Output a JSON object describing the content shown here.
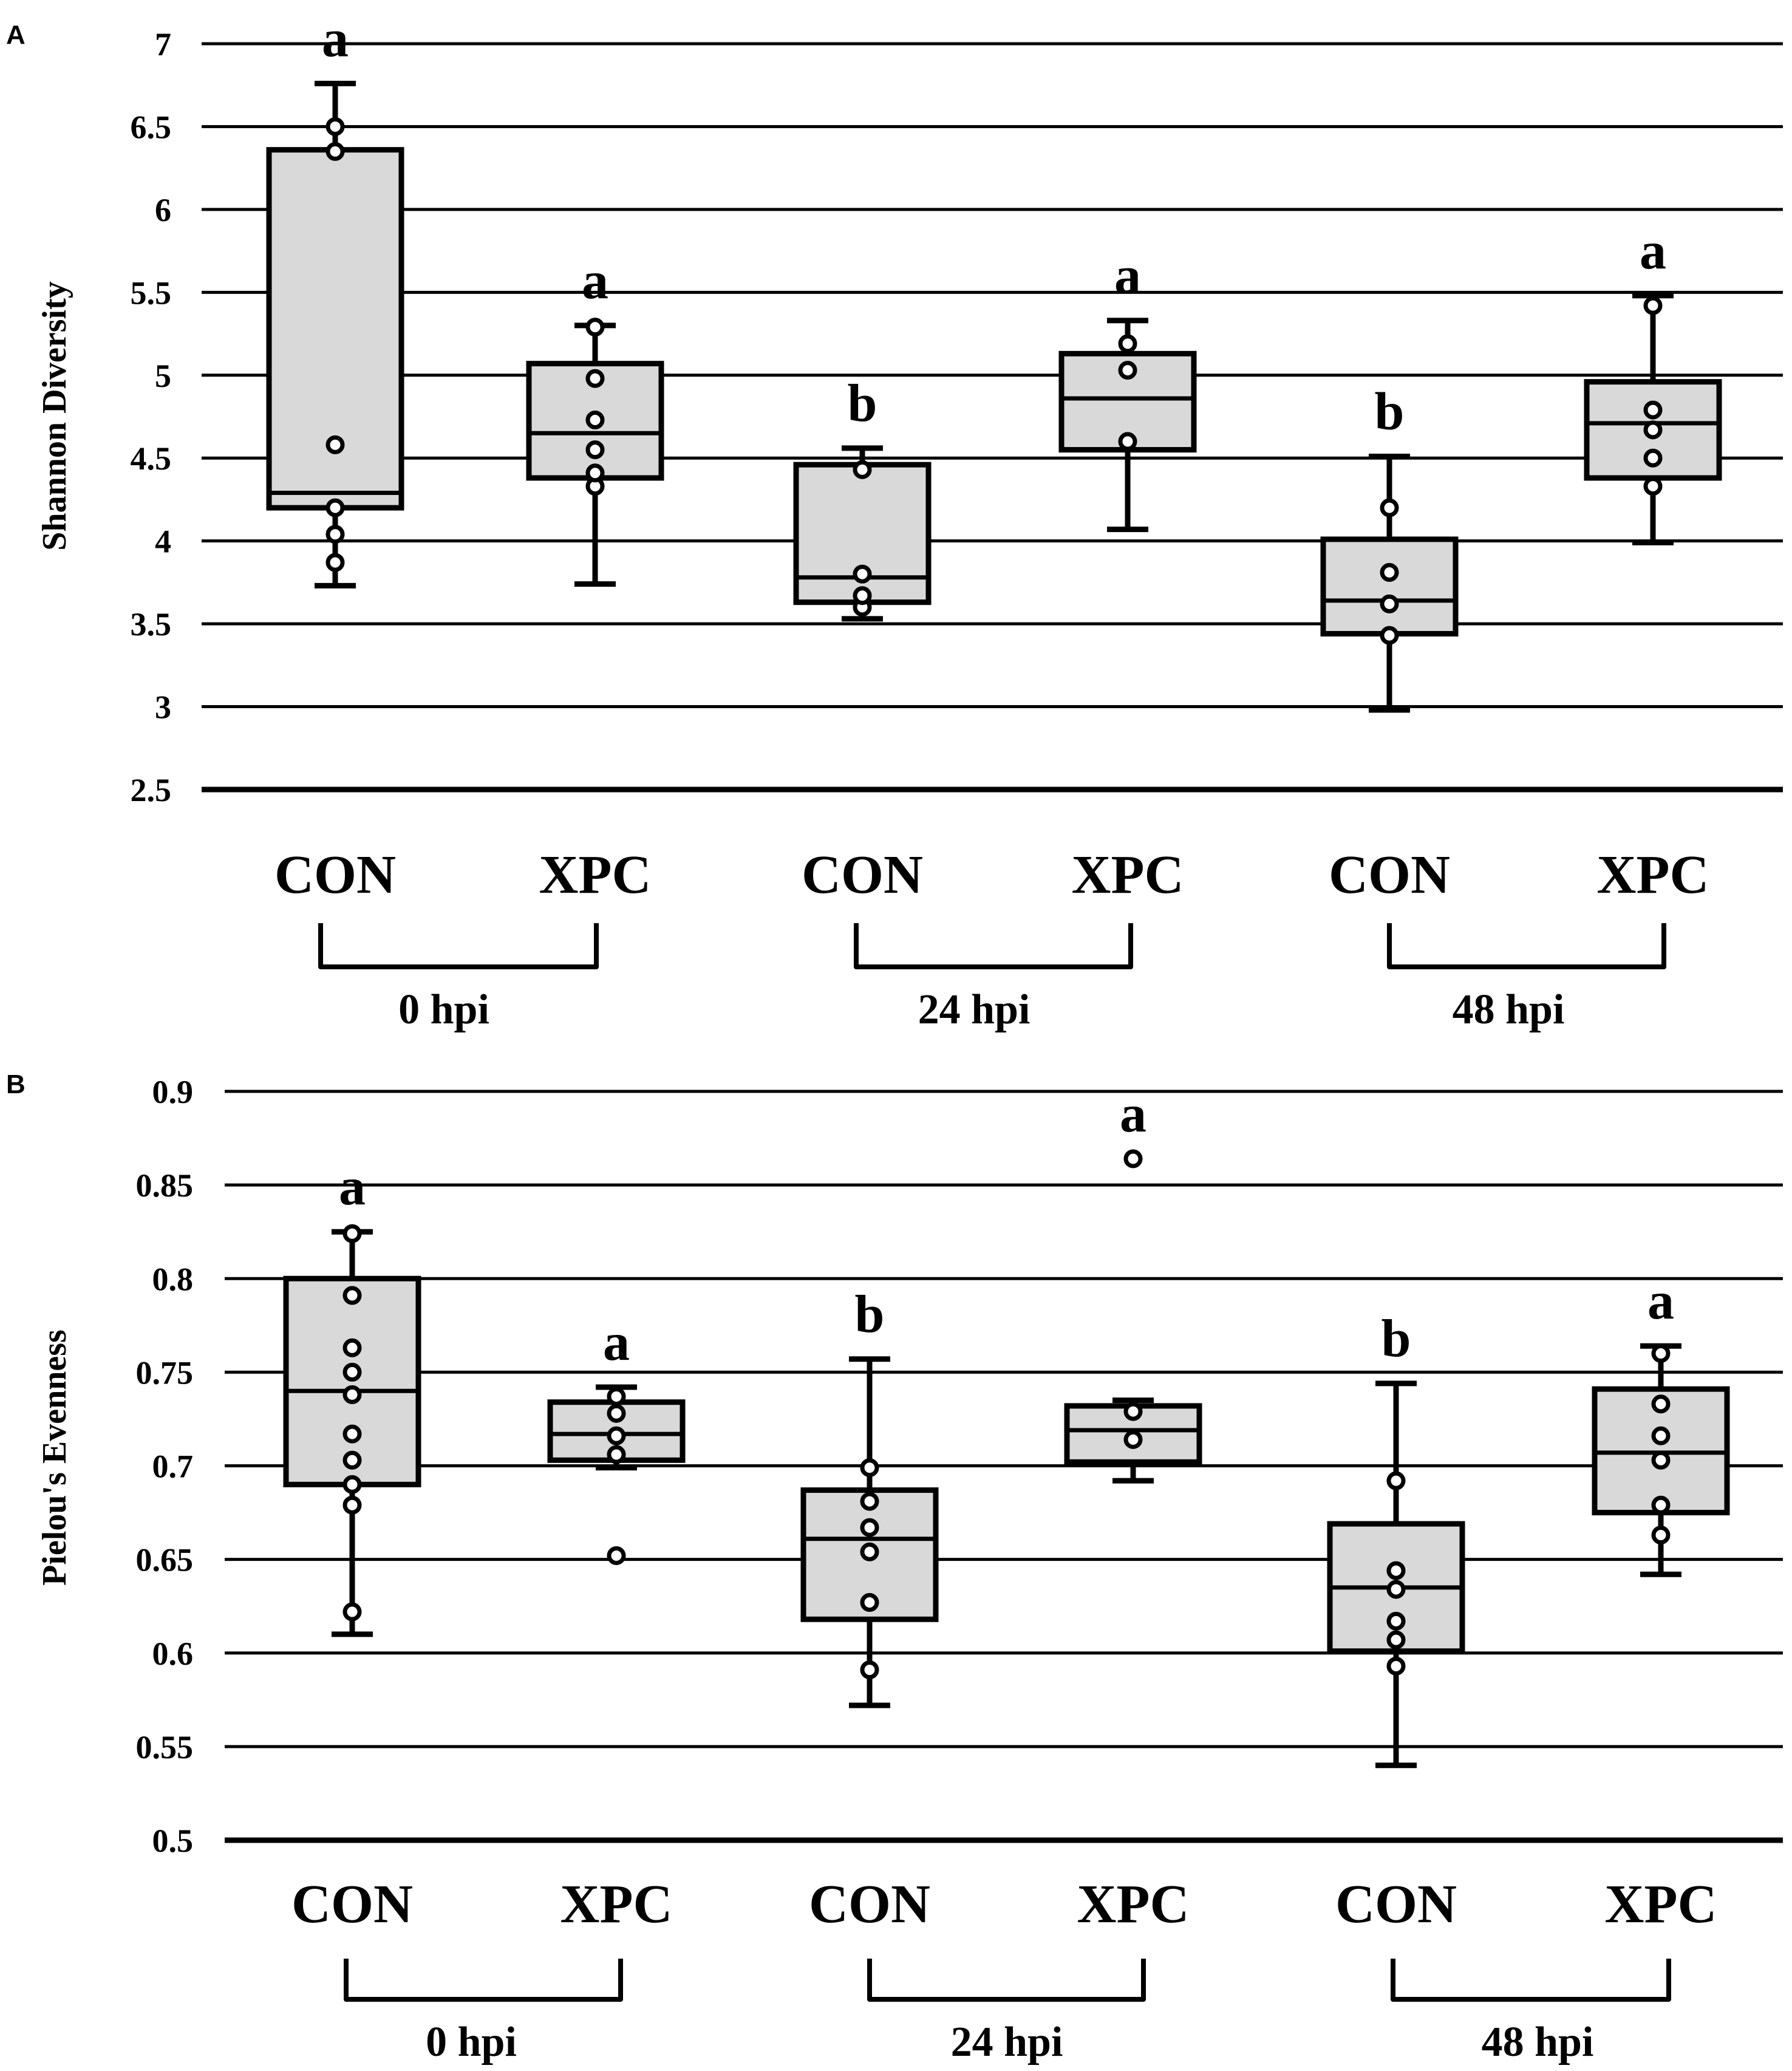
{
  "chart_data": [
    {
      "panel_label": "A",
      "type": "box",
      "ylabel": "Shannon Diversity",
      "ylim": [
        2.5,
        7
      ],
      "yticks": [
        2.5,
        3,
        3.5,
        4,
        4.5,
        5,
        5.5,
        6,
        6.5,
        7
      ],
      "ytick_labels": [
        "2.5",
        "3",
        "3.5",
        "4",
        "4.5",
        "5",
        "5.5",
        "6",
        "6.5",
        "7"
      ],
      "grid": true,
      "groups": [
        {
          "label": "0 hpi",
          "categories": [
            "CON",
            "XPC"
          ]
        },
        {
          "label": "24 hpi",
          "categories": [
            "CON",
            "XPC"
          ]
        },
        {
          "label": "48 hpi",
          "categories": [
            "CON",
            "XPC"
          ]
        }
      ],
      "boxes": [
        {
          "category": "CON",
          "group": "0 hpi",
          "whisker_low": 3.73,
          "q1": 4.2,
          "median": 4.29,
          "q3": 6.36,
          "whisker_high": 6.76,
          "points": [
            3.87,
            4.04,
            4.2,
            4.58,
            6.35,
            6.5
          ],
          "letter": "a"
        },
        {
          "category": "XPC",
          "group": "0 hpi",
          "whisker_low": 3.74,
          "q1": 4.38,
          "median": 4.65,
          "q3": 5.07,
          "whisker_high": 5.3,
          "points": [
            4.33,
            4.41,
            4.55,
            4.73,
            4.98,
            5.29
          ],
          "letter": "a"
        },
        {
          "category": "CON",
          "group": "24 hpi",
          "whisker_low": 3.53,
          "q1": 3.63,
          "median": 3.78,
          "q3": 4.46,
          "whisker_high": 4.56,
          "points": [
            3.6,
            3.67,
            3.8,
            4.43
          ],
          "letter": "b"
        },
        {
          "category": "XPC",
          "group": "24 hpi",
          "whisker_low": 4.07,
          "q1": 4.55,
          "median": 4.86,
          "q3": 5.13,
          "whisker_high": 5.33,
          "points": [
            4.6,
            5.03,
            5.19
          ],
          "letter": "a"
        },
        {
          "category": "CON",
          "group": "48 hpi",
          "whisker_low": 2.98,
          "q1": 3.44,
          "median": 3.64,
          "q3": 4.01,
          "whisker_high": 4.51,
          "points": [
            3.43,
            3.62,
            3.81,
            4.2
          ],
          "letter": "b"
        },
        {
          "category": "XPC",
          "group": "48 hpi",
          "whisker_low": 3.99,
          "q1": 4.38,
          "median": 4.71,
          "q3": 4.96,
          "whisker_high": 5.48,
          "points": [
            4.33,
            4.5,
            4.67,
            4.79,
            5.42
          ],
          "letter": "a"
        }
      ]
    },
    {
      "panel_label": "B",
      "type": "box",
      "ylabel": "Pielou's Evenness",
      "ylim": [
        0.5,
        0.9
      ],
      "yticks": [
        0.5,
        0.55,
        0.6,
        0.65,
        0.7,
        0.75,
        0.8,
        0.85,
        0.9
      ],
      "ytick_labels": [
        "0.5",
        "0.55",
        "0.6",
        "0.65",
        "0.7",
        "0.75",
        "0.8",
        "0.85",
        "0.9"
      ],
      "grid": true,
      "groups": [
        {
          "label": "0 hpi",
          "categories": [
            "CON",
            "XPC"
          ]
        },
        {
          "label": "24 hpi",
          "categories": [
            "CON",
            "XPC"
          ]
        },
        {
          "label": "48 hpi",
          "categories": [
            "CON",
            "XPC"
          ]
        }
      ],
      "boxes": [
        {
          "category": "CON",
          "group": "0 hpi",
          "whisker_low": 0.61,
          "q1": 0.69,
          "median": 0.74,
          "q3": 0.8,
          "whisker_high": 0.825,
          "points": [
            0.622,
            0.679,
            0.69,
            0.703,
            0.717,
            0.738,
            0.75,
            0.763,
            0.791,
            0.824
          ],
          "letter": "a"
        },
        {
          "category": "XPC",
          "group": "0 hpi",
          "whisker_low": 0.699,
          "q1": 0.703,
          "median": 0.717,
          "q3": 0.734,
          "whisker_high": 0.742,
          "points": [
            0.652,
            0.706,
            0.716,
            0.728,
            0.737
          ],
          "letter": "a"
        },
        {
          "category": "CON",
          "group": "24 hpi",
          "whisker_low": 0.572,
          "q1": 0.618,
          "median": 0.661,
          "q3": 0.687,
          "whisker_high": 0.757,
          "points": [
            0.591,
            0.627,
            0.654,
            0.667,
            0.681,
            0.699
          ],
          "letter": "b"
        },
        {
          "category": "XPC",
          "group": "24 hpi",
          "whisker_low": 0.692,
          "q1": 0.702,
          "median": 0.719,
          "q3": 0.732,
          "whisker_high": 0.735,
          "points": [
            0.714,
            0.729,
            0.864
          ],
          "letter": "a"
        },
        {
          "category": "CON",
          "group": "48 hpi",
          "whisker_low": 0.54,
          "q1": 0.601,
          "median": 0.635,
          "q3": 0.669,
          "whisker_high": 0.744,
          "points": [
            0.593,
            0.607,
            0.617,
            0.634,
            0.644,
            0.692
          ],
          "letter": "b"
        },
        {
          "category": "XPC",
          "group": "48 hpi",
          "whisker_low": 0.642,
          "q1": 0.675,
          "median": 0.707,
          "q3": 0.741,
          "whisker_high": 0.764,
          "points": [
            0.663,
            0.679,
            0.703,
            0.716,
            0.733,
            0.76
          ],
          "letter": "a"
        }
      ]
    }
  ],
  "colors": {
    "box_fill": "#d9d9d9",
    "ink": "#000000",
    "point_fill": "#ffffff"
  }
}
